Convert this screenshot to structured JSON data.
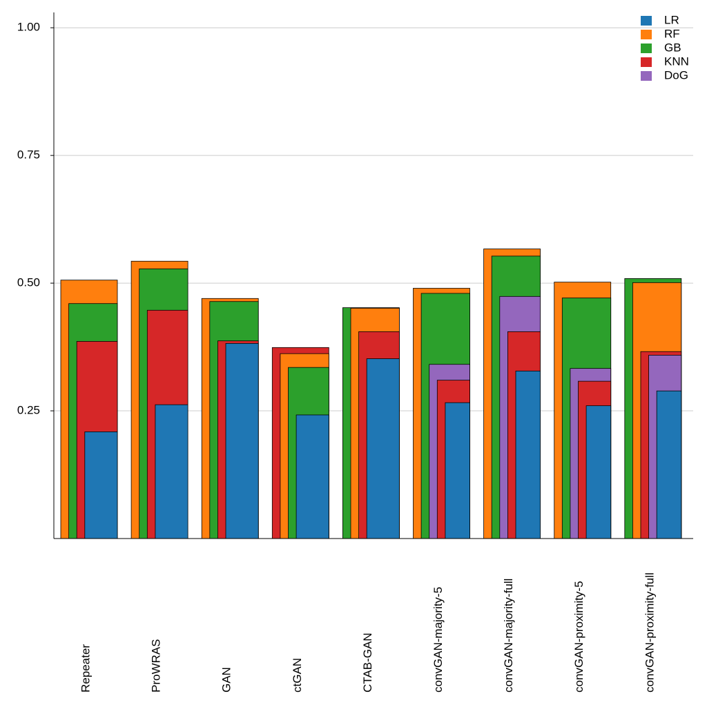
{
  "chart_data": {
    "type": "bar",
    "categories": [
      "Repeater",
      "ProWRAS",
      "GAN",
      "ctGAN",
      "CTAB-GAN",
      "convGAN-majority-5",
      "convGAN-majority-full",
      "convGAN-proximity-5",
      "convGAN-proximity-full"
    ],
    "series": [
      {
        "name": "LR",
        "color": "#1f77b4",
        "values": [
          0.209,
          0.262,
          0.382,
          0.242,
          0.352,
          0.266,
          0.328,
          0.26,
          0.289
        ]
      },
      {
        "name": "RF",
        "color": "#ff7f0e",
        "values": [
          0.506,
          0.543,
          0.47,
          0.362,
          0.451,
          0.49,
          0.567,
          0.502,
          0.501
        ]
      },
      {
        "name": "GB",
        "color": "#2ca02c",
        "values": [
          0.46,
          0.528,
          0.464,
          0.335,
          0.452,
          0.48,
          0.553,
          0.471,
          0.509
        ]
      },
      {
        "name": "KNN",
        "color": "#d62728",
        "values": [
          0.386,
          0.447,
          0.387,
          0.374,
          0.405,
          0.31,
          0.405,
          0.308,
          0.366
        ]
      },
      {
        "name": "DoG",
        "color": "#9467bd",
        "values": [
          null,
          null,
          null,
          null,
          null,
          0.341,
          0.474,
          0.333,
          0.359
        ]
      }
    ],
    "ylim": [
      0,
      1.03
    ],
    "yticks": [
      {
        "value": 0.25,
        "label": "0.25"
      },
      {
        "value": 0.5,
        "label": "0.50"
      },
      {
        "value": 0.75,
        "label": "0.75"
      },
      {
        "value": 1.0,
        "label": "1.00"
      }
    ],
    "grid": true,
    "legend": "upper right"
  }
}
